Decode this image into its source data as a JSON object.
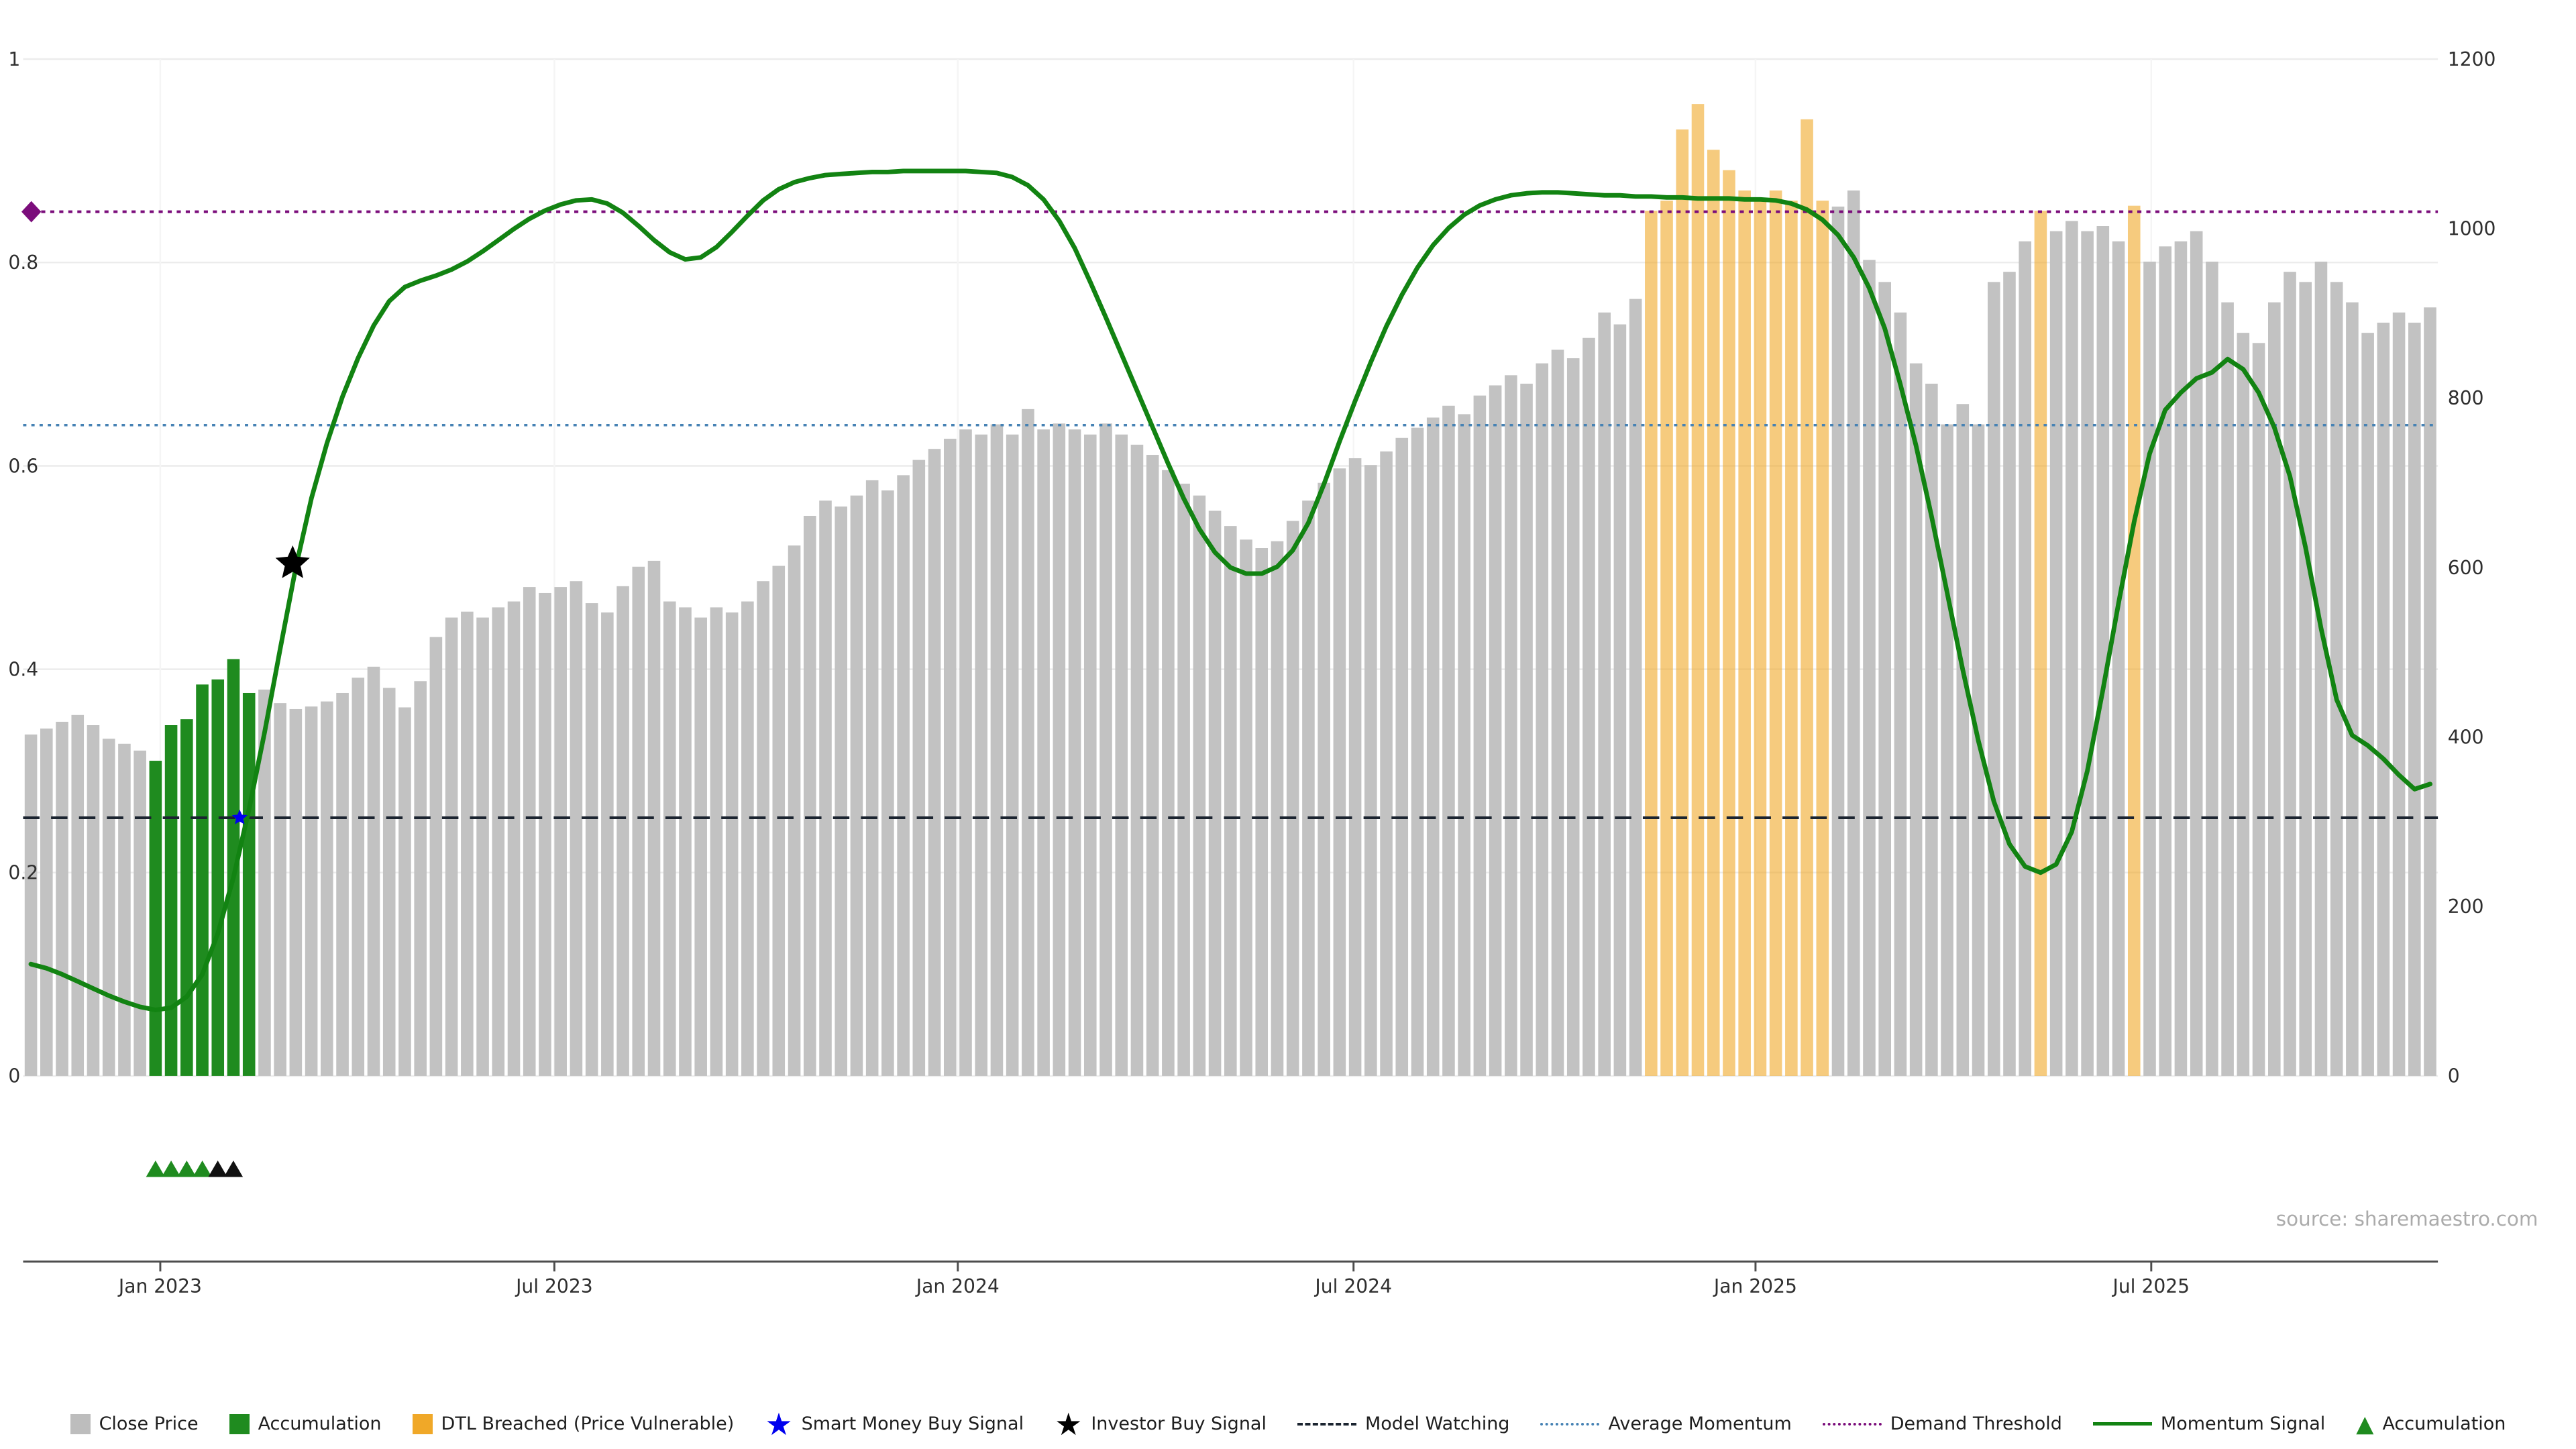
{
  "source": "source: sharemaestro.com",
  "chart_data": {
    "type": "bar+line",
    "left_axis": {
      "min": 0,
      "max": 1,
      "ticks": [
        0,
        0.2,
        0.4,
        0.6,
        0.8,
        1
      ],
      "labels": [
        "0",
        "0.2",
        "0.4",
        "0.6",
        "0.8",
        "1"
      ]
    },
    "right_axis": {
      "min": 0,
      "max": 1200,
      "ticks": [
        0,
        200,
        400,
        600,
        800,
        1000,
        1200
      ]
    },
    "x_ticks": [
      {
        "label": "Jan 2023",
        "index": 8.3
      },
      {
        "label": "Jul 2023",
        "index": 33.6
      },
      {
        "label": "Jan 2024",
        "index": 59.5
      },
      {
        "label": "Jul 2024",
        "index": 84.9
      },
      {
        "label": "Jan 2025",
        "index": 110.7
      },
      {
        "label": "Jul 2025",
        "index": 136.1
      }
    ],
    "close_price": [
      403,
      410,
      418,
      426,
      414,
      398,
      392,
      384,
      372,
      414,
      421,
      462,
      468,
      492,
      452,
      456,
      440,
      433,
      436,
      442,
      452,
      470,
      483,
      458,
      435,
      466,
      518,
      541,
      548,
      541,
      553,
      560,
      577,
      570,
      577,
      584,
      558,
      547,
      578,
      601,
      608,
      560,
      553,
      541,
      553,
      547,
      560,
      584,
      602,
      626,
      661,
      679,
      672,
      685,
      703,
      691,
      709,
      727,
      740,
      752,
      763,
      757,
      769,
      757,
      787,
      763,
      770,
      763,
      757,
      770,
      757,
      745,
      733,
      715,
      699,
      685,
      667,
      649,
      633,
      623,
      631,
      655,
      679,
      700,
      717,
      729,
      721,
      737,
      753,
      765,
      777,
      791,
      781,
      803,
      815,
      827,
      817,
      841,
      857,
      847,
      871,
      901,
      887,
      917,
      1021,
      1033,
      1117,
      1147,
      1093,
      1069,
      1045,
      1033,
      1045,
      1033,
      1129,
      1033,
      1026,
      1045,
      963,
      937,
      901,
      841,
      817,
      769,
      793,
      769,
      937,
      949,
      985,
      1021,
      997,
      1009,
      997,
      1003,
      985,
      1027,
      961,
      979,
      985,
      997,
      961,
      913,
      877,
      865,
      913,
      949,
      937,
      961,
      937,
      913,
      877,
      889,
      901,
      889,
      907
    ],
    "accumulation_indices": [
      8,
      9,
      10,
      11,
      12,
      13,
      14
    ],
    "dtl_indices": [
      104,
      105,
      106,
      107,
      108,
      109,
      110,
      111,
      112,
      113,
      114,
      115,
      129,
      135
    ],
    "momentum_signal": [
      0.11,
      0.106,
      0.1,
      0.093,
      0.086,
      0.079,
      0.073,
      0.068,
      0.065,
      0.067,
      0.078,
      0.1,
      0.14,
      0.195,
      0.262,
      0.338,
      0.42,
      0.5,
      0.568,
      0.622,
      0.668,
      0.706,
      0.738,
      0.762,
      0.776,
      0.782,
      0.787,
      0.793,
      0.801,
      0.811,
      0.822,
      0.833,
      0.843,
      0.851,
      0.857,
      0.861,
      0.862,
      0.858,
      0.849,
      0.836,
      0.822,
      0.81,
      0.803,
      0.805,
      0.815,
      0.83,
      0.846,
      0.861,
      0.872,
      0.879,
      0.883,
      0.886,
      0.887,
      0.888,
      0.889,
      0.889,
      0.89,
      0.89,
      0.89,
      0.89,
      0.89,
      0.889,
      0.888,
      0.884,
      0.876,
      0.862,
      0.841,
      0.814,
      0.781,
      0.746,
      0.71,
      0.674,
      0.638,
      0.602,
      0.568,
      0.538,
      0.515,
      0.5,
      0.494,
      0.494,
      0.501,
      0.517,
      0.544,
      0.582,
      0.624,
      0.664,
      0.702,
      0.737,
      0.768,
      0.795,
      0.817,
      0.834,
      0.847,
      0.856,
      0.862,
      0.866,
      0.868,
      0.869,
      0.869,
      0.868,
      0.867,
      0.866,
      0.866,
      0.865,
      0.865,
      0.864,
      0.864,
      0.863,
      0.863,
      0.863,
      0.862,
      0.862,
      0.861,
      0.858,
      0.852,
      0.842,
      0.827,
      0.805,
      0.775,
      0.735,
      0.68,
      0.62,
      0.55,
      0.475,
      0.4,
      0.33,
      0.27,
      0.228,
      0.206,
      0.2,
      0.208,
      0.24,
      0.3,
      0.38,
      0.465,
      0.545,
      0.612,
      0.655,
      0.672,
      0.686,
      0.692,
      0.705,
      0.695,
      0.672,
      0.638,
      0.59,
      0.52,
      0.44,
      0.37,
      0.335,
      0.325,
      0.312,
      0.296,
      0.282,
      0.287
    ],
    "hlines": {
      "model_watching": 0.254,
      "average_momentum": 0.64,
      "demand_threshold": 0.85
    },
    "markers": {
      "investor_buy": {
        "index": 16.8,
        "value": 0.504
      },
      "smart_money_buy": {
        "index": 13.4,
        "value": 0.254
      },
      "demand_diamond_value": 0.85,
      "accumulation_triangles": {
        "green": [
          8,
          9,
          10,
          11
        ],
        "black": [
          12,
          13
        ]
      }
    },
    "colors": {
      "close_bar": "#c2c2c2",
      "accumulation_bar": "#1f8b1f",
      "dtl_bar": "#f0a828",
      "momentum_line": "#128312",
      "average_momentum": "#4682b4",
      "demand_threshold": "#7b0d7b",
      "model_watching": "#1b2430",
      "smart_money": "#0000ee",
      "investor": "#000000"
    }
  },
  "legend": {
    "items": [
      {
        "label": "Close Price",
        "swatch": "square",
        "color": "#bdbdbd"
      },
      {
        "label": "Accumulation",
        "swatch": "square",
        "color": "#1f8b1f"
      },
      {
        "label": "DTL Breached (Price Vulnerable)",
        "swatch": "square",
        "color": "#f0a828"
      },
      {
        "label": "Smart Money Buy Signal",
        "swatch": "star",
        "color": "#0000ee"
      },
      {
        "label": "Investor Buy Signal",
        "swatch": "star",
        "color": "#000000"
      },
      {
        "label": "Model Watching",
        "swatch": "dashed-line",
        "color": "#1b2430"
      },
      {
        "label": "Average Momentum",
        "swatch": "dotted-line",
        "color": "#4682b4"
      },
      {
        "label": "Demand Threshold",
        "swatch": "dotted-line",
        "color": "#7b0d7b"
      },
      {
        "label": "Momentum Signal",
        "swatch": "solid-line",
        "color": "#128312"
      },
      {
        "label": "Accumulation",
        "swatch": "triangle",
        "color": "#1f8b1f"
      }
    ]
  }
}
